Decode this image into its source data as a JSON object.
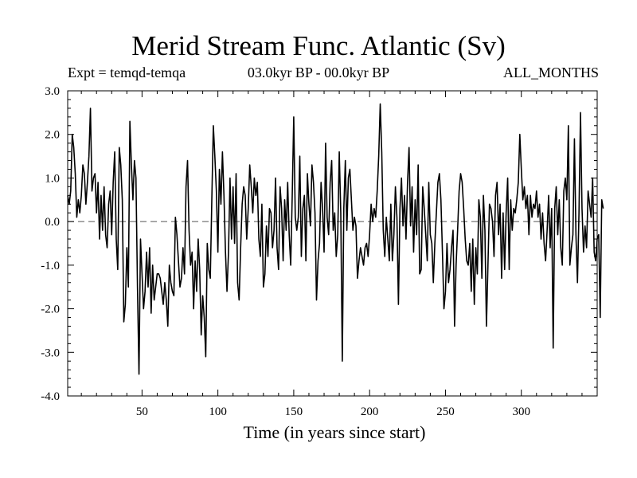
{
  "chart_data": {
    "type": "line",
    "title": "Merid Stream Func. Atlantic (Sv)",
    "subtitle_left": "Expt = temqd-temqa",
    "subtitle_center": "03.0kyr BP - 00.0kyr BP",
    "subtitle_right": "ALL_MONTHS",
    "xlabel": "Time (in years since start)",
    "ylabel": "",
    "xlim": [
      1,
      350
    ],
    "ylim": [
      -4.0,
      3.0
    ],
    "x_ticks": [
      50,
      100,
      150,
      200,
      250,
      300
    ],
    "y_ticks": [
      "-4.0",
      "-3.0",
      "-2.0",
      "-1.0",
      "0.0",
      "1.0",
      "2.0",
      "3.0"
    ],
    "reference_line": 0.0,
    "grid": false,
    "line_color": "#000000",
    "series": [
      {
        "x_start": 1,
        "x_step": 1,
        "values": [
          0.6,
          0.4,
          0.7,
          2.0,
          1.7,
          1.1,
          0.1,
          0.5,
          0.2,
          0.6,
          1.3,
          1.1,
          0.4,
          0.9,
          1.5,
          2.6,
          0.7,
          1.0,
          1.1,
          0.2,
          0.9,
          -0.4,
          0.6,
          -0.2,
          0.8,
          -0.3,
          -0.6,
          0.4,
          0.7,
          -0.3,
          0.9,
          1.6,
          -0.4,
          -1.1,
          1.7,
          1.3,
          0.5,
          -2.3,
          -1.9,
          -0.6,
          -1.5,
          2.3,
          1.3,
          0.5,
          1.4,
          1.0,
          -1.5,
          -3.5,
          -0.4,
          -1.2,
          -2.0,
          -1.6,
          -0.7,
          -1.5,
          -0.6,
          -2.1,
          -1.0,
          -1.8,
          -1.5,
          -1.2,
          -1.2,
          -1.3,
          -1.6,
          -1.9,
          -1.4,
          -1.8,
          -2.4,
          -1.0,
          -1.4,
          -1.6,
          -1.7,
          0.1,
          -0.3,
          -0.9,
          -1.5,
          -1.3,
          -0.6,
          -1.2,
          0.8,
          1.4,
          -0.2,
          -1.0,
          -0.7,
          -2.0,
          -0.9,
          -1.6,
          -0.4,
          -1.1,
          -2.6,
          -1.7,
          -2.2,
          -3.1,
          -0.5,
          -1.1,
          -1.3,
          0.5,
          2.2,
          1.5,
          0.7,
          -0.7,
          1.2,
          0.4,
          1.6,
          0.6,
          -0.7,
          -1.6,
          -0.7,
          1.0,
          -0.4,
          0.8,
          -0.5,
          1.1,
          -1.4,
          -1.8,
          -0.6,
          0.4,
          0.8,
          0.6,
          -0.4,
          0.3,
          1.3,
          0.8,
          0.2,
          1.0,
          0.6,
          0.9,
          -0.4,
          -0.8,
          0.4,
          -1.5,
          -1.2,
          -0.1,
          -0.8,
          0.3,
          0.2,
          -0.6,
          -0.2,
          1.0,
          -0.6,
          -1.1,
          0.8,
          0.3,
          -0.9,
          0.5,
          -0.2,
          0.9,
          -0.3,
          -1.0,
          0.6,
          2.4,
          0.1,
          -0.2,
          0.1,
          1.5,
          -0.8,
          0.3,
          0.6,
          -0.9,
          1.1,
          0.4,
          -0.1,
          1.3,
          0.9,
          0.2,
          -1.8,
          -0.9,
          -0.5,
          0.9,
          0.3,
          -0.7,
          1.8,
          0.1,
          -0.3,
          0.9,
          1.4,
          -0.2,
          0.2,
          -0.8,
          -0.3,
          1.6,
          0.2,
          -3.2,
          0.3,
          1.4,
          -0.2,
          1.0,
          1.2,
          0.5,
          -0.2,
          0.1,
          -0.1,
          -1.3,
          -0.9,
          -0.6,
          -0.8,
          -1.0,
          -0.6,
          -0.5,
          -0.8,
          -0.3,
          0.4,
          0.0,
          0.3,
          0.1,
          0.7,
          1.5,
          2.7,
          1.6,
          -0.2,
          -0.8,
          0.1,
          -0.4,
          -0.9,
          0.4,
          -0.9,
          -0.3,
          0.8,
          0.1,
          -1.9,
          0.3,
          1.0,
          -0.1,
          0.6,
          -0.4,
          0.9,
          1.7,
          -0.1,
          0.8,
          -0.7,
          0.5,
          -0.3,
          1.3,
          -1.2,
          -1.1,
          0.8,
          0.3,
          -0.3,
          -0.9,
          0.9,
          -0.3,
          -0.5,
          -1.4,
          -0.5,
          0.2,
          0.9,
          1.1,
          0.5,
          -0.7,
          -2.0,
          -1.6,
          -0.5,
          -1.4,
          -1.1,
          -0.6,
          -0.2,
          -2.4,
          -1.0,
          -0.2,
          0.7,
          1.1,
          0.9,
          0.3,
          -0.4,
          -0.9,
          -1.0,
          -0.5,
          -1.6,
          -0.4,
          -1.9,
          -0.6,
          -1.2,
          0.5,
          0.1,
          -1.3,
          0.6,
          -0.2,
          -2.4,
          -1.0,
          0.4,
          0.3,
          0.0,
          -0.8,
          0.6,
          0.9,
          -0.3,
          0.4,
          -1.3,
          0.2,
          -1.1,
          0.2,
          1.0,
          -1.1,
          0.5,
          -0.2,
          0.3,
          0.2,
          0.5,
          0.9,
          2.0,
          1.2,
          0.5,
          0.8,
          0.3,
          0.6,
          -0.3,
          0.6,
          0.1,
          0.4,
          0.3,
          0.7,
          0.1,
          0.4,
          -0.4,
          0.2,
          -0.5,
          -0.9,
          -0.2,
          0.6,
          -0.6,
          0.3,
          -2.9,
          0.3,
          0.8,
          -0.3,
          0.5,
          -0.6,
          -1.0,
          0.7,
          1.0,
          0.5,
          2.2,
          -1.0,
          -0.6,
          -0.3,
          1.9,
          -0.3,
          -1.4,
          0.2,
          2.5,
          0.3,
          -0.7,
          -0.1,
          -0.6,
          0.7,
          0.4,
          0.1,
          1.0,
          -0.7,
          -0.9,
          -0.4,
          -0.3,
          -2.2,
          0.5,
          0.3
        ]
      }
    ]
  }
}
